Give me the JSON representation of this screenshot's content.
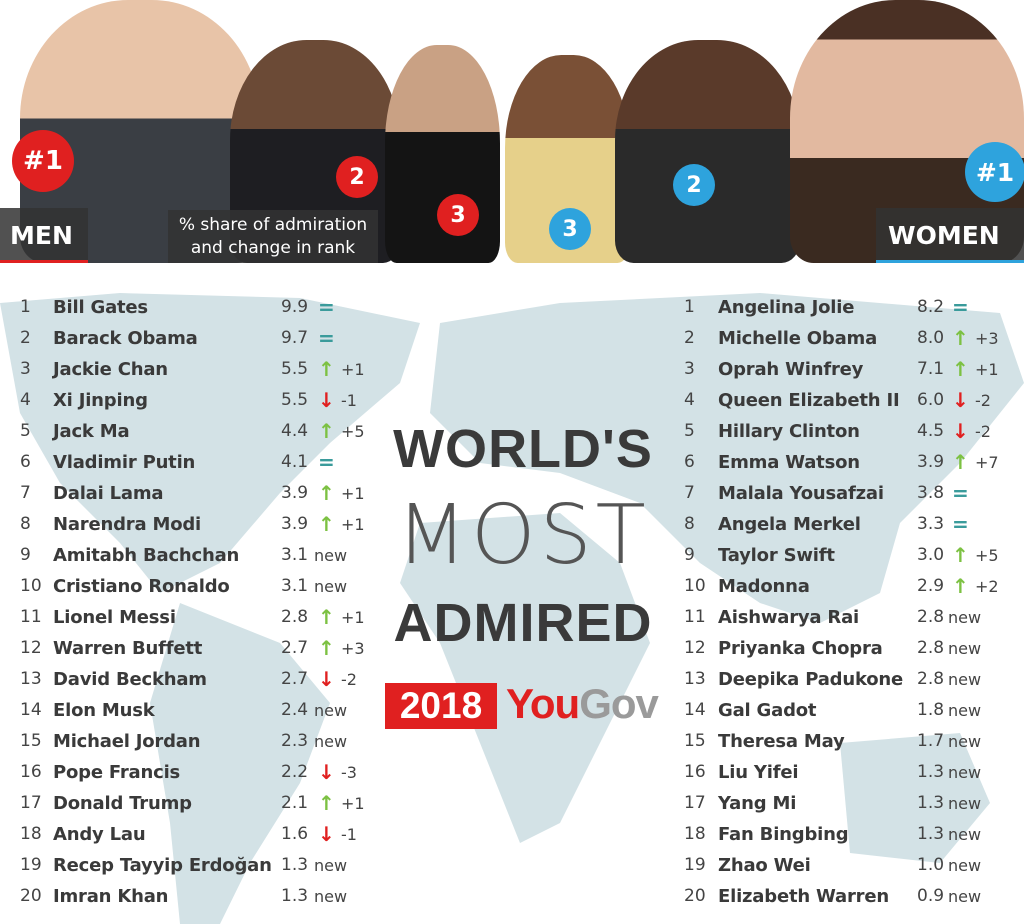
{
  "header": {
    "men_label": "MEN",
    "women_label": "WOMEN",
    "caption_line1": "% share of admiration",
    "caption_line2": "and change in rank",
    "men_badges": [
      "#1",
      "2",
      "3"
    ],
    "women_badges": [
      "3",
      "2",
      "#1"
    ]
  },
  "title": {
    "line1": "WORLD'S",
    "line2": "MOST",
    "line3": "ADMIRED",
    "year": "2018",
    "brand": "YouGov"
  },
  "colors": {
    "men_accent": "#e02020",
    "women_accent": "#2ea3dd",
    "up": "#7cc142",
    "down": "#e02020",
    "same": "#3a9b9b",
    "map": "#d3e2e6"
  },
  "men": [
    {
      "rank": "1",
      "name": "Bill Gates",
      "score": "9.9",
      "trend": "same",
      "change": ""
    },
    {
      "rank": "2",
      "name": "Barack Obama",
      "score": "9.7",
      "trend": "same",
      "change": ""
    },
    {
      "rank": "3",
      "name": "Jackie Chan",
      "score": "5.5",
      "trend": "up",
      "change": "+1"
    },
    {
      "rank": "4",
      "name": "Xi Jinping",
      "score": "5.5",
      "trend": "down",
      "change": "-1"
    },
    {
      "rank": "5",
      "name": "Jack Ma",
      "score": "4.4",
      "trend": "up",
      "change": "+5"
    },
    {
      "rank": "6",
      "name": "Vladimir Putin",
      "score": "4.1",
      "trend": "same",
      "change": ""
    },
    {
      "rank": "7",
      "name": "Dalai Lama",
      "score": "3.9",
      "trend": "up",
      "change": "+1"
    },
    {
      "rank": "8",
      "name": "Narendra Modi",
      "score": "3.9",
      "trend": "up",
      "change": "+1"
    },
    {
      "rank": "9",
      "name": "Amitabh Bachchan",
      "score": "3.1",
      "trend": "new",
      "change": "new"
    },
    {
      "rank": "10",
      "name": "Cristiano Ronaldo",
      "score": "3.1",
      "trend": "new",
      "change": "new"
    },
    {
      "rank": "11",
      "name": "Lionel Messi",
      "score": "2.8",
      "trend": "up",
      "change": "+1"
    },
    {
      "rank": "12",
      "name": "Warren Buffett",
      "score": "2.7",
      "trend": "up",
      "change": "+3"
    },
    {
      "rank": "13",
      "name": "David Beckham",
      "score": "2.7",
      "trend": "down",
      "change": "-2"
    },
    {
      "rank": "14",
      "name": "Elon Musk",
      "score": "2.4",
      "trend": "new",
      "change": "new"
    },
    {
      "rank": "15",
      "name": "Michael Jordan",
      "score": "2.3",
      "trend": "new",
      "change": "new"
    },
    {
      "rank": "16",
      "name": "Pope Francis",
      "score": "2.2",
      "trend": "down",
      "change": "-3"
    },
    {
      "rank": "17",
      "name": "Donald Trump",
      "score": "2.1",
      "trend": "up",
      "change": "+1"
    },
    {
      "rank": "18",
      "name": "Andy Lau",
      "score": "1.6",
      "trend": "down",
      "change": "-1"
    },
    {
      "rank": "19",
      "name": "Recep Tayyip Erdoğan",
      "score": "1.3",
      "trend": "new",
      "change": "new"
    },
    {
      "rank": "20",
      "name": "Imran Khan",
      "score": "1.3",
      "trend": "new",
      "change": "new"
    }
  ],
  "women": [
    {
      "rank": "1",
      "name": "Angelina Jolie",
      "score": "8.2",
      "trend": "same",
      "change": ""
    },
    {
      "rank": "2",
      "name": "Michelle Obama",
      "score": "8.0",
      "trend": "up",
      "change": "+3"
    },
    {
      "rank": "3",
      "name": "Oprah Winfrey",
      "score": "7.1",
      "trend": "up",
      "change": "+1"
    },
    {
      "rank": "4",
      "name": "Queen Elizabeth II",
      "score": "6.0",
      "trend": "down",
      "change": "-2"
    },
    {
      "rank": "5",
      "name": "Hillary Clinton",
      "score": "4.5",
      "trend": "down",
      "change": "-2"
    },
    {
      "rank": "6",
      "name": "Emma Watson",
      "score": "3.9",
      "trend": "up",
      "change": "+7"
    },
    {
      "rank": "7",
      "name": "Malala Yousafzai",
      "score": "3.8",
      "trend": "same",
      "change": ""
    },
    {
      "rank": "8",
      "name": "Angela Merkel",
      "score": "3.3",
      "trend": "same",
      "change": ""
    },
    {
      "rank": "9",
      "name": "Taylor Swift",
      "score": "3.0",
      "trend": "up",
      "change": "+5"
    },
    {
      "rank": "10",
      "name": "Madonna",
      "score": "2.9",
      "trend": "up",
      "change": "+2"
    },
    {
      "rank": "11",
      "name": "Aishwarya Rai",
      "score": "2.8",
      "trend": "new",
      "change": "new"
    },
    {
      "rank": "12",
      "name": "Priyanka Chopra",
      "score": "2.8",
      "trend": "new",
      "change": "new"
    },
    {
      "rank": "13",
      "name": "Deepika Padukone",
      "score": "2.8",
      "trend": "new",
      "change": "new"
    },
    {
      "rank": "14",
      "name": "Gal Gadot",
      "score": "1.8",
      "trend": "new",
      "change": "new"
    },
    {
      "rank": "15",
      "name": "Theresa May",
      "score": "1.7",
      "trend": "new",
      "change": "new"
    },
    {
      "rank": "16",
      "name": "Liu Yifei",
      "score": "1.3",
      "trend": "new",
      "change": "new"
    },
    {
      "rank": "17",
      "name": "Yang Mi",
      "score": "1.3",
      "trend": "new",
      "change": "new"
    },
    {
      "rank": "18",
      "name": "Fan Bingbing",
      "score": "1.3",
      "trend": "new",
      "change": "new"
    },
    {
      "rank": "19",
      "name": "Zhao Wei",
      "score": "1.0",
      "trend": "new",
      "change": "new"
    },
    {
      "rank": "20",
      "name": "Elizabeth Warren",
      "score": "0.9",
      "trend": "new",
      "change": "new"
    }
  ]
}
